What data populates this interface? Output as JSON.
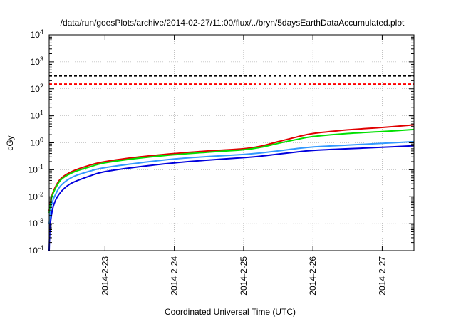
{
  "chart_data": {
    "type": "line",
    "title": "/data/run/goesPlots/archive/2014-02-27/11:00/flux/../bryn/5daysEarthDataAccumulated.plot",
    "xlabel": "Coordinated Universal Time (UTC)",
    "ylabel": "cGy",
    "yscale": "log",
    "ylim": [
      0.0001,
      10000
    ],
    "xlim": [
      "2014-02-22T04:40",
      "2014-02-27T11:00"
    ],
    "x_ticks": [
      {
        "label": "2014-2-23",
        "x": "2014-02-23T00:00"
      },
      {
        "label": "2014-2-24",
        "x": "2014-02-24T00:00"
      },
      {
        "label": "2014-2-25",
        "x": "2014-02-25T00:00"
      },
      {
        "label": "2014-2-26",
        "x": "2014-02-26T00:00"
      },
      {
        "label": "2014-2-27",
        "x": "2014-02-27T00:00"
      }
    ],
    "y_ticks": [
      {
        "base": "10",
        "exp": "-4",
        "value": 0.0001
      },
      {
        "base": "10",
        "exp": "-3",
        "value": 0.001
      },
      {
        "base": "10",
        "exp": "-2",
        "value": 0.01
      },
      {
        "base": "10",
        "exp": "-1",
        "value": 0.1
      },
      {
        "base": "10",
        "exp": "0",
        "value": 1
      },
      {
        "base": "10",
        "exp": "1",
        "value": 10
      },
      {
        "base": "10",
        "exp": "2",
        "value": 100
      },
      {
        "base": "10",
        "exp": "3",
        "value": 1000
      },
      {
        "base": "10",
        "exp": "4",
        "value": 10000
      }
    ],
    "grid": true,
    "reference_lines": [
      {
        "y": 300,
        "color": "#000000",
        "style": "dashed"
      },
      {
        "y": 150,
        "color": "#ff0000",
        "style": "dashed"
      }
    ],
    "series": [
      {
        "color": "#e00000",
        "points": [
          [
            "2014-02-22T04:40",
            0.003
          ],
          [
            "2014-02-22T05:30",
            0.01
          ],
          [
            "2014-02-22T07:00",
            0.025
          ],
          [
            "2014-02-22T09:00",
            0.05
          ],
          [
            "2014-02-22T13:00",
            0.09
          ],
          [
            "2014-02-22T19:00",
            0.15
          ],
          [
            "2014-02-23T00:00",
            0.2
          ],
          [
            "2014-02-23T12:00",
            0.3
          ],
          [
            "2014-02-24T00:00",
            0.4
          ],
          [
            "2014-02-24T12:00",
            0.5
          ],
          [
            "2014-02-25T00:00",
            0.6
          ],
          [
            "2014-02-25T06:00",
            0.75
          ],
          [
            "2014-02-25T12:00",
            1.1
          ],
          [
            "2014-02-25T18:00",
            1.6
          ],
          [
            "2014-02-26T00:00",
            2.2
          ],
          [
            "2014-02-26T12:00",
            3.0
          ],
          [
            "2014-02-27T00:00",
            3.7
          ],
          [
            "2014-02-27T11:00",
            4.6
          ]
        ]
      },
      {
        "color": "#00e000",
        "points": [
          [
            "2014-02-22T04:40",
            0.0025
          ],
          [
            "2014-02-22T05:30",
            0.009
          ],
          [
            "2014-02-22T07:00",
            0.022
          ],
          [
            "2014-02-22T09:00",
            0.045
          ],
          [
            "2014-02-22T13:00",
            0.08
          ],
          [
            "2014-02-22T19:00",
            0.13
          ],
          [
            "2014-02-23T00:00",
            0.18
          ],
          [
            "2014-02-23T12:00",
            0.27
          ],
          [
            "2014-02-24T00:00",
            0.36
          ],
          [
            "2014-02-24T12:00",
            0.45
          ],
          [
            "2014-02-25T00:00",
            0.55
          ],
          [
            "2014-02-25T06:00",
            0.68
          ],
          [
            "2014-02-25T12:00",
            0.95
          ],
          [
            "2014-02-25T18:00",
            1.3
          ],
          [
            "2014-02-26T00:00",
            1.7
          ],
          [
            "2014-02-26T12:00",
            2.2
          ],
          [
            "2014-02-27T00:00",
            2.6
          ],
          [
            "2014-02-27T11:00",
            3.1
          ]
        ]
      },
      {
        "color": "#3399ff",
        "points": [
          [
            "2014-02-22T04:40",
            0.001
          ],
          [
            "2014-02-22T05:30",
            0.005
          ],
          [
            "2014-02-22T07:00",
            0.013
          ],
          [
            "2014-02-22T09:00",
            0.028
          ],
          [
            "2014-02-22T13:00",
            0.055
          ],
          [
            "2014-02-22T19:00",
            0.09
          ],
          [
            "2014-02-23T00:00",
            0.12
          ],
          [
            "2014-02-23T12:00",
            0.18
          ],
          [
            "2014-02-24T00:00",
            0.25
          ],
          [
            "2014-02-24T12:00",
            0.31
          ],
          [
            "2014-02-25T00:00",
            0.37
          ],
          [
            "2014-02-25T06:00",
            0.42
          ],
          [
            "2014-02-25T12:00",
            0.5
          ],
          [
            "2014-02-25T18:00",
            0.6
          ],
          [
            "2014-02-26T00:00",
            0.7
          ],
          [
            "2014-02-26T12:00",
            0.82
          ],
          [
            "2014-02-27T00:00",
            0.95
          ],
          [
            "2014-02-27T11:00",
            1.1
          ]
        ]
      },
      {
        "color": "#0000dd",
        "points": [
          [
            "2014-02-22T04:40",
            0.0001
          ],
          [
            "2014-02-22T05:00",
            0.0008
          ],
          [
            "2014-02-22T06:00",
            0.004
          ],
          [
            "2014-02-22T08:00",
            0.012
          ],
          [
            "2014-02-22T12:00",
            0.03
          ],
          [
            "2014-02-22T19:00",
            0.06
          ],
          [
            "2014-02-23T00:00",
            0.085
          ],
          [
            "2014-02-23T12:00",
            0.13
          ],
          [
            "2014-02-24T00:00",
            0.18
          ],
          [
            "2014-02-24T12:00",
            0.23
          ],
          [
            "2014-02-25T00:00",
            0.28
          ],
          [
            "2014-02-25T06:00",
            0.32
          ],
          [
            "2014-02-25T12:00",
            0.38
          ],
          [
            "2014-02-25T18:00",
            0.45
          ],
          [
            "2014-02-26T00:00",
            0.52
          ],
          [
            "2014-02-26T12:00",
            0.6
          ],
          [
            "2014-02-27T00:00",
            0.68
          ],
          [
            "2014-02-27T11:00",
            0.78
          ]
        ]
      }
    ]
  }
}
